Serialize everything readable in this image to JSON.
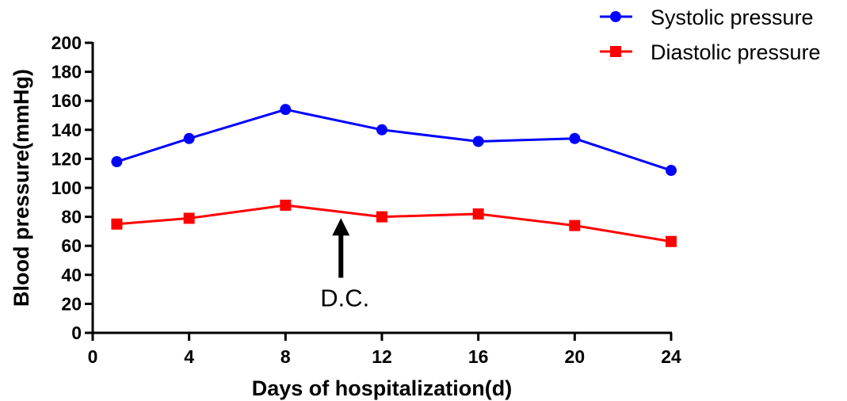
{
  "chart_data": {
    "type": "line",
    "title": "",
    "xlabel": "Days of hospitalization(d)",
    "ylabel": "Blood pressure(mmHg)",
    "xlim": [
      0,
      24
    ],
    "ylim": [
      0,
      200
    ],
    "x_ticks": [
      0,
      4,
      8,
      12,
      16,
      20,
      24
    ],
    "y_ticks": [
      0,
      20,
      40,
      60,
      80,
      100,
      120,
      140,
      160,
      180,
      200
    ],
    "grid": false,
    "legend_position": "top-right",
    "series": [
      {
        "name": "Systolic pressure",
        "color": "#0000ff",
        "marker": "circle",
        "x": [
          1,
          4,
          8,
          12,
          16,
          20,
          24
        ],
        "y": [
          118,
          134,
          154,
          140,
          132,
          134,
          112
        ]
      },
      {
        "name": "Diastolic pressure",
        "color": "#ff0000",
        "marker": "square",
        "x": [
          1,
          4,
          8,
          12,
          16,
          20,
          24
        ],
        "y": [
          75,
          79,
          88,
          80,
          82,
          74,
          63
        ]
      }
    ],
    "annotations": [
      {
        "text": "D.C.",
        "x": 10.3,
        "arrow_from_y": 38,
        "arrow_to_y": 78
      }
    ]
  }
}
